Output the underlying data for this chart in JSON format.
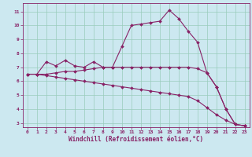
{
  "xlabel": "Windchill (Refroidissement éolien,°C)",
  "background_color": "#cce8f0",
  "grid_color": "#99ccbb",
  "line_color": "#882266",
  "xlim_min": -0.5,
  "xlim_max": 23.5,
  "ylim_min": 2.7,
  "ylim_max": 11.6,
  "xticks": [
    0,
    1,
    2,
    3,
    4,
    5,
    6,
    7,
    8,
    9,
    10,
    11,
    12,
    13,
    14,
    15,
    16,
    17,
    18,
    19,
    20,
    21,
    22,
    23
  ],
  "yticks": [
    3,
    4,
    5,
    6,
    7,
    8,
    9,
    10,
    11
  ],
  "hours": [
    0,
    1,
    2,
    3,
    4,
    5,
    6,
    7,
    8,
    9,
    10,
    11,
    12,
    13,
    14,
    15,
    16,
    17,
    18,
    19,
    20,
    21,
    22,
    23
  ],
  "line1": [
    6.5,
    6.5,
    7.4,
    7.1,
    7.5,
    7.1,
    7.0,
    7.4,
    7.0,
    7.0,
    8.5,
    10.0,
    10.1,
    10.2,
    10.3,
    11.1,
    10.5,
    9.6,
    8.8,
    6.6,
    5.6,
    4.0,
    2.9,
    2.8
  ],
  "line2": [
    6.5,
    6.5,
    6.5,
    6.6,
    6.7,
    6.7,
    6.8,
    6.9,
    7.0,
    7.0,
    7.0,
    7.0,
    7.0,
    7.0,
    7.0,
    7.0,
    7.0,
    7.0,
    6.9,
    6.6,
    5.6,
    4.0,
    2.9,
    2.8
  ],
  "line3": [
    6.5,
    6.5,
    6.4,
    6.3,
    6.2,
    6.1,
    6.0,
    5.9,
    5.8,
    5.7,
    5.6,
    5.5,
    5.4,
    5.3,
    5.2,
    5.1,
    5.0,
    4.9,
    4.6,
    4.1,
    3.6,
    3.2,
    2.9,
    2.8
  ],
  "tick_fontsize": 4.5,
  "xlabel_fontsize": 5.5,
  "marker_size": 2.0,
  "linewidth": 0.8
}
